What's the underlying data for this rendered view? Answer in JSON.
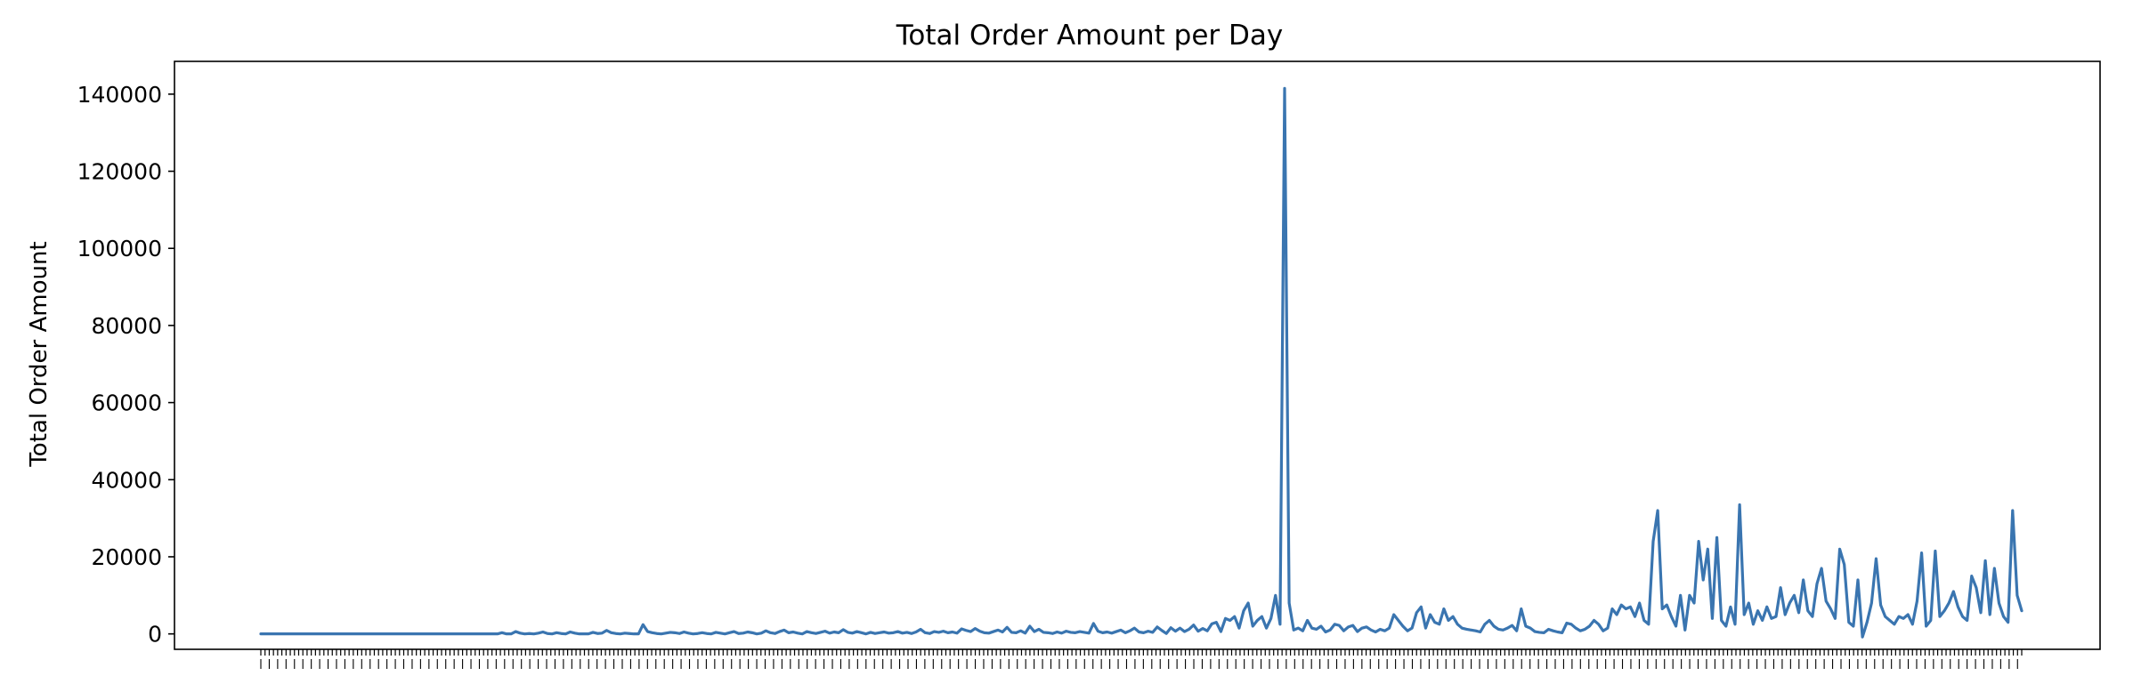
{
  "chart_data": {
    "type": "line",
    "title": "Total Order Amount per Day",
    "xlabel": "",
    "ylabel": "Total Order Amount",
    "ylim": [
      -4000,
      148500
    ],
    "yticks": [
      0,
      20000,
      40000,
      60000,
      80000,
      100000,
      120000,
      140000
    ],
    "ytick_labels": [
      "0",
      "20000",
      "40000",
      "60000",
      "80000",
      "100000",
      "120000",
      "140000"
    ],
    "xtick_count": 420,
    "xtick_labels_legible": false,
    "grid": false,
    "line_color": "#3a75b0",
    "series": [
      {
        "values": [
          0,
          0,
          0,
          0,
          0,
          0,
          0,
          0,
          0,
          0,
          0,
          0,
          0,
          0,
          0,
          0,
          0,
          0,
          0,
          0,
          0,
          0,
          0,
          0,
          0,
          0,
          0,
          0,
          0,
          0,
          0,
          0,
          0,
          0,
          0,
          0,
          0,
          0,
          0,
          0,
          0,
          0,
          0,
          0,
          0,
          0,
          0,
          0,
          0,
          0,
          0,
          0,
          0,
          300,
          0,
          0,
          600,
          200,
          0,
          100,
          0,
          200,
          500,
          100,
          0,
          300,
          100,
          0,
          500,
          200,
          0,
          0,
          0,
          400,
          100,
          200,
          900,
          300,
          100,
          0,
          200,
          100,
          0,
          0,
          2400,
          600,
          300,
          100,
          0,
          200,
          400,
          300,
          100,
          500,
          200,
          0,
          100,
          300,
          100,
          0,
          400,
          200,
          0,
          300,
          600,
          100,
          200,
          500,
          300,
          0,
          200,
          800,
          300,
          100,
          600,
          1000,
          300,
          500,
          200,
          0,
          600,
          300,
          100,
          400,
          700,
          200,
          500,
          300,
          1100,
          400,
          200,
          600,
          300,
          0,
          400,
          100,
          300,
          500,
          200,
          300,
          600,
          200,
          400,
          100,
          500,
          1200,
          300,
          100,
          600,
          400,
          700,
          300,
          500,
          200,
          1300,
          900,
          600,
          1400,
          700,
          300,
          200,
          600,
          1000,
          500,
          1700,
          400,
          300,
          800,
          200,
          2000,
          600,
          1200,
          400,
          300,
          100,
          500,
          200,
          700,
          400,
          300,
          600,
          400,
          200,
          2700,
          700,
          300,
          500,
          200,
          600,
          1000,
          300,
          800,
          1500,
          500,
          300,
          700,
          400,
          1800,
          900,
          100,
          1600,
          700,
          1500,
          600,
          1200,
          2300,
          700,
          1400,
          800,
          2600,
          3000,
          600,
          4000,
          3500,
          4500,
          1500,
          6000,
          8000,
          2000,
          3500,
          4500,
          1500,
          4000,
          10000,
          2500,
          141500,
          8000,
          1000,
          1500,
          800,
          3500,
          1500,
          1200,
          2000,
          500,
          1000,
          2500,
          2200,
          800,
          1800,
          2200,
          600,
          1500,
          1800,
          1000,
          500,
          1200,
          800,
          1500,
          5000,
          3500,
          2000,
          800,
          1500,
          5500,
          7000,
          1500,
          5000,
          3000,
          2500,
          6500,
          3500,
          4500,
          2500,
          1500,
          1200,
          1000,
          800,
          500,
          2500,
          3500,
          2000,
          1200,
          1000,
          1500,
          2200,
          800,
          6500,
          2000,
          1500,
          600,
          400,
          300,
          1200,
          800,
          500,
          300,
          2800,
          2500,
          1500,
          800,
          1200,
          2000,
          3500,
          2500,
          800,
          1500,
          6500,
          5000,
          7500,
          6500,
          7000,
          4500,
          8000,
          3500,
          2500,
          24000,
          32000,
          6500,
          7500,
          4500,
          2000,
          10000,
          1000,
          10000,
          8000,
          24000,
          14000,
          22000,
          4000,
          25000,
          3500,
          2000,
          7000,
          2500,
          33500,
          5000,
          8000,
          2500,
          6000,
          3500,
          7000,
          4000,
          4500,
          12000,
          5000,
          8000,
          10000,
          5500,
          14000,
          6000,
          4500,
          13000,
          17000,
          8500,
          6500,
          4000,
          22000,
          18000,
          3000,
          2000,
          14000,
          -800,
          3000,
          8000,
          19500,
          7500,
          4500,
          3500,
          2500,
          4500,
          4000,
          5000,
          2500,
          8500,
          21000,
          2000,
          3500,
          21500,
          4500,
          6000,
          8000,
          11000,
          7000,
          4500,
          3500,
          15000,
          12000,
          5500,
          19000,
          5000,
          17000,
          8000,
          4500,
          3000,
          32000,
          10000,
          6000
        ]
      }
    ]
  }
}
